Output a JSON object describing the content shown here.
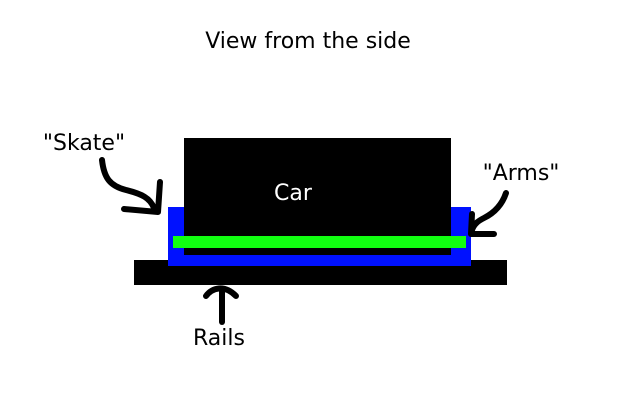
{
  "title": "View from the side",
  "labels": {
    "car": "Car",
    "skate": "\"Skate\"",
    "arms": "\"Arms\"",
    "rails": "Rails"
  },
  "colors": {
    "background": "#ffffff",
    "car": "#000000",
    "skate": "#0011ff",
    "arms": "#11ff11",
    "rails": "#000000",
    "arrows": "#000000",
    "car_label": "#ffffff"
  }
}
